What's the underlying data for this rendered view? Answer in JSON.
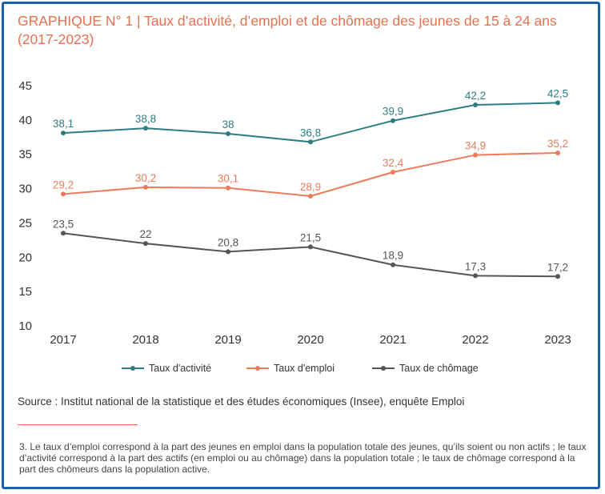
{
  "title": "GRAPHIQUE N° 1 | Taux d’activité, d’emploi et de chômage des jeunes de 15 à 24 ans (2017-2023)",
  "source": "Source : Institut national de la statistique et des études économiques (Insee), enquête Emploi",
  "footnote": "3.  Le taux d’emploi correspond à la part des jeunes en emploi dans la population totale des jeunes, qu’ils soient ou non actifs ; le taux d’activité correspond à la part des actifs (en emploi ou au chômage) dans la population totale ; le taux de chômage correspond à la part des chômeurs dans la population active.",
  "chart_data": {
    "type": "line",
    "x": [
      "2017",
      "2018",
      "2019",
      "2020",
      "2021",
      "2022",
      "2023"
    ],
    "ylim": [
      10,
      45
    ],
    "yticks": [
      10,
      15,
      20,
      25,
      30,
      35,
      40,
      45
    ],
    "grid": false,
    "legend_position": "bottom",
    "series": [
      {
        "name": "Taux d'activité",
        "color": "#2e7d82",
        "values": [
          38.1,
          38.8,
          38,
          36.8,
          39.9,
          42.2,
          42.5
        ],
        "labels": [
          "38,1",
          "38,8",
          "38",
          "36,8",
          "39,9",
          "42,2",
          "42,5"
        ]
      },
      {
        "name": "Taux d'emploi",
        "color": "#ee7a5b",
        "values": [
          29.2,
          30.2,
          30.1,
          28.9,
          32.4,
          34.9,
          35.2
        ],
        "labels": [
          "29,2",
          "30,2",
          "30,1",
          "28,9",
          "32,4",
          "34,9",
          "35,2"
        ]
      },
      {
        "name": "Taux de chômage",
        "color": "#555555",
        "values": [
          23.5,
          22,
          20.8,
          21.5,
          18.9,
          17.3,
          17.2
        ],
        "labels": [
          "23,5",
          "22",
          "20,8",
          "21,5",
          "18,9",
          "17,3",
          "17,2"
        ]
      }
    ]
  }
}
